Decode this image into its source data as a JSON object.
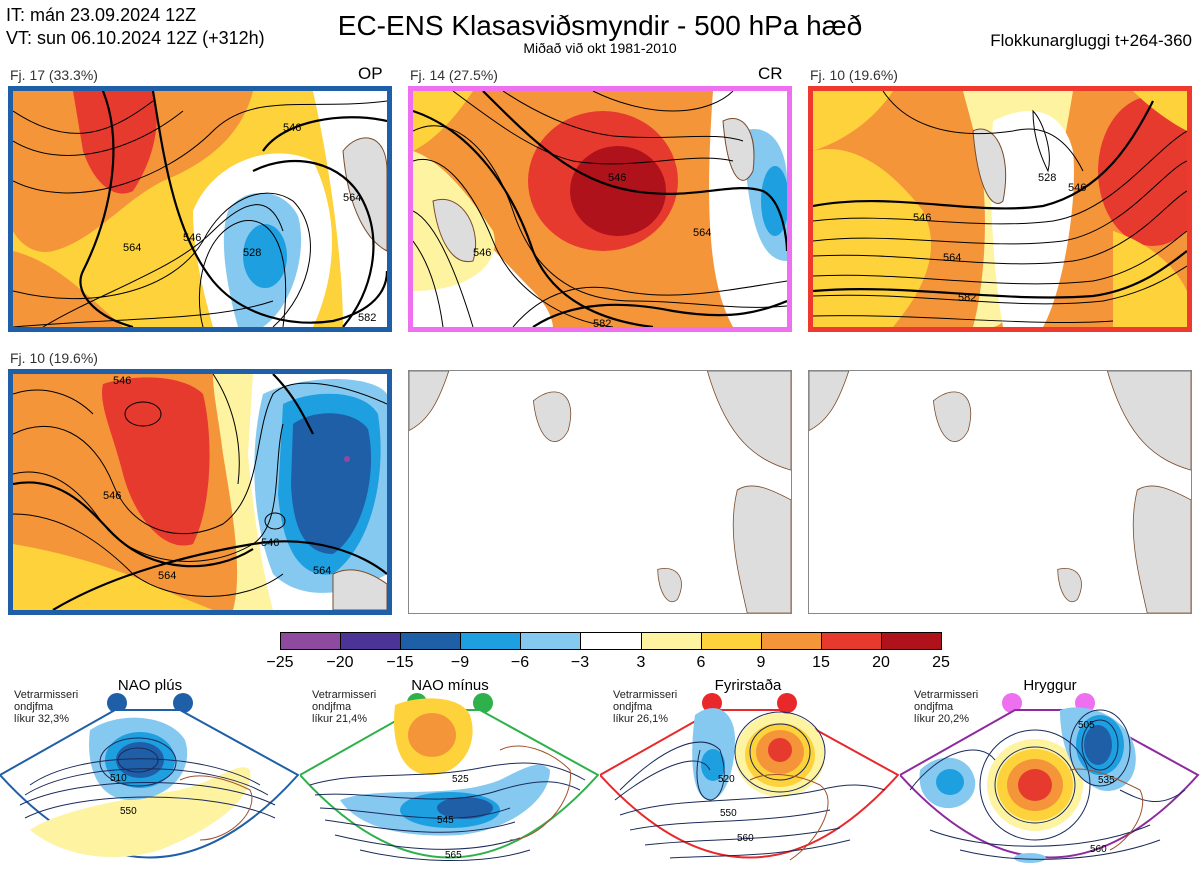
{
  "header": {
    "it": "IT: mán 23.09.2024 12Z",
    "vt": "VT: sun 06.10.2024 12Z  (+312h)",
    "title": "EC-ENS Klasasviðsmyndir - 500 hPa hæð",
    "subtitle": "Miðað við okt 1981-2010",
    "window": "Flokkunargluggi t+264-360"
  },
  "panels": [
    {
      "label": "Fj. 17 (33.3%)",
      "tag": "OP",
      "border": "#1f5fa8",
      "contours": [
        "546",
        "564",
        "528",
        "546",
        "564",
        "582"
      ]
    },
    {
      "label": "Fj. 14 (27.5%)",
      "tag": "CR",
      "border": "#ee6ff0",
      "contours": [
        "546",
        "546",
        "564",
        "582"
      ]
    },
    {
      "label": "Fj. 10 (19.6%)",
      "tag": "",
      "border": "#ee3a2e",
      "contours": [
        "528",
        "546",
        "564",
        "546",
        "582"
      ]
    },
    {
      "label": "Fj. 10 (19.6%)",
      "tag": "",
      "border": "#1f5fa8",
      "contours": [
        "546",
        "546",
        "546",
        "564",
        "564"
      ]
    }
  ],
  "colorbar": {
    "colors": [
      "#8d4a9e",
      "#4b3495",
      "#1f5fa8",
      "#1ea0e0",
      "#86c9f0",
      "#ffffff",
      "#fdf3a0",
      "#fdd23a",
      "#f5953a",
      "#e73a2f",
      "#b0121b"
    ],
    "ticks": [
      "−25",
      "−20",
      "−15",
      "−9",
      "−6",
      "−3",
      "3",
      "6",
      "9",
      "15",
      "20",
      "25"
    ]
  },
  "regimes": [
    {
      "title": "NAO plús",
      "note": [
        "Vetrarmisseri",
        "ondjfma",
        "líkur 32,3%"
      ],
      "color": "#1f5fa8",
      "contours": [
        "510",
        "550"
      ]
    },
    {
      "title": "NAO mínus",
      "note": [
        "Vetrarmisseri",
        "ondjfma",
        "líkur 21,4%"
      ],
      "color": "#2eb04a",
      "contours": [
        "525",
        "545",
        "565"
      ]
    },
    {
      "title": "Fyrirstaða",
      "note": [
        "Vetrarmisseri",
        "ondjfma",
        "líkur 26,1%"
      ],
      "color": "#e8282a",
      "contours": [
        "520",
        "550",
        "560"
      ]
    },
    {
      "title": "Hryggur",
      "note": [
        "Vetrarmisseri",
        "ondjfma",
        "líkur 20,2%"
      ],
      "color": "#ee6ff0",
      "contours": [
        "505",
        "535",
        "560"
      ]
    }
  ]
}
